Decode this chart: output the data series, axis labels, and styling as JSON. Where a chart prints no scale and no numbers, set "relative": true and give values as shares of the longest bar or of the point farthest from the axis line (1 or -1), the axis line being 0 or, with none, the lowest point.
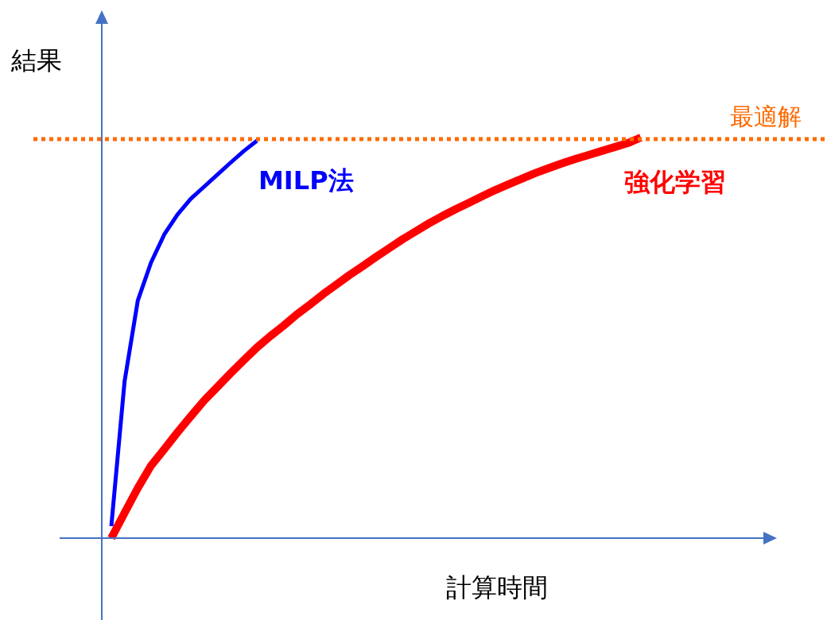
{
  "chart_data": {
    "type": "line",
    "relative": true,
    "xlabel": "計算時間",
    "ylabel": "結果",
    "legend": false,
    "marker": "none",
    "categories": [
      null,
      null,
      null,
      null,
      null,
      null,
      null,
      null,
      null,
      null,
      null,
      null,
      null,
      null,
      null,
      null,
      null,
      null,
      null,
      null,
      null,
      null,
      null,
      null,
      null,
      null,
      null,
      null,
      null,
      null,
      null,
      null,
      null,
      null,
      null,
      null,
      null,
      null,
      null,
      null,
      null
    ],
    "series": [
      {
        "name": "MILP法",
        "color": "#0000ff",
        "values": [
          0.03,
          0.391,
          0.593,
          0.688,
          0.758,
          0.808,
          0.847,
          0.877,
          0.907,
          0.937,
          0.966,
          0.992,
          null,
          null,
          null,
          null,
          null,
          null,
          null,
          null,
          null,
          null,
          null,
          null,
          null,
          null,
          null,
          null,
          null,
          null,
          null,
          null,
          null,
          null,
          null,
          null,
          null,
          null,
          null,
          null,
          null
        ]
      },
      {
        "name": "強化学習",
        "color": "#ff0000",
        "values": [
          0,
          0.063,
          0.125,
          0.181,
          0.222,
          0.264,
          0.304,
          0.343,
          0.377,
          0.411,
          0.444,
          0.476,
          0.504,
          0.53,
          0.558,
          0.583,
          0.609,
          0.633,
          0.657,
          0.679,
          0.702,
          0.724,
          0.746,
          0.766,
          0.786,
          0.804,
          0.821,
          0.837,
          0.853,
          0.869,
          0.883,
          0.897,
          0.911,
          0.923,
          0.935,
          0.946,
          0.956,
          0.966,
          0.976,
          0.986,
          1
        ]
      }
    ],
    "ref_lines": [
      {
        "axis": "y",
        "value": 0.996,
        "label": "最適解",
        "color": "#ff6a00",
        "line_style": "dotted"
      }
    ]
  }
}
